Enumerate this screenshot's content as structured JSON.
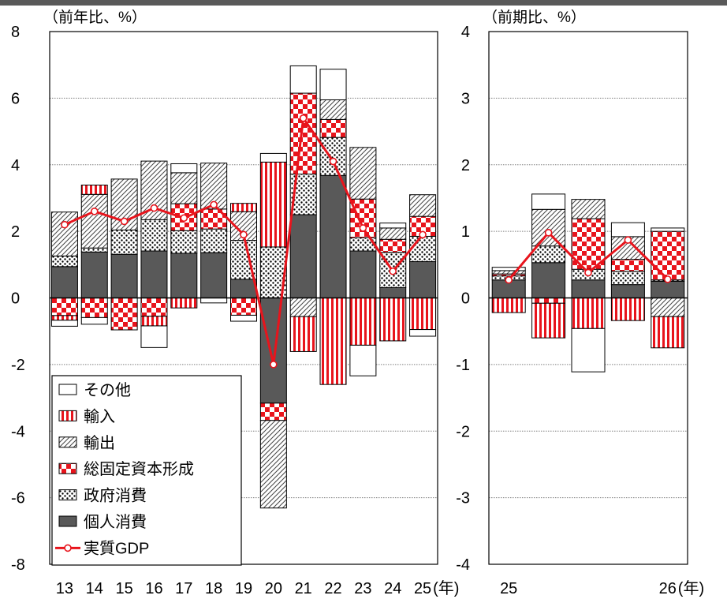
{
  "chart_data": [
    {
      "type": "bar",
      "stacked": true,
      "unit_label": "（前年比、%）",
      "ylim": [
        -8,
        8
      ],
      "y_ticks": [
        8,
        6,
        4,
        2,
        0,
        -2,
        -4,
        -6,
        -8
      ],
      "y_tick_labels": [
        "8",
        "6",
        "4",
        "2",
        "0",
        "-2",
        "-4",
        "-6",
        "-8"
      ],
      "grid": true,
      "legend_position": "bottom-left",
      "categories": [
        "13",
        "14",
        "15",
        "16",
        "17",
        "18",
        "19",
        "20",
        "21",
        "22",
        "23",
        "24",
        "25"
      ],
      "x_suffix": "(年)",
      "series": [
        {
          "name": "個人消費",
          "color": "#595959",
          "values": [
            0.94,
            1.38,
            1.31,
            1.41,
            1.34,
            1.36,
            0.56,
            -3.16,
            2.5,
            3.68,
            1.41,
            0.31,
            1.09
          ]
        },
        {
          "name": "政府消費",
          "color": "#e6e6e6",
          "values": [
            0.32,
            0.12,
            0.73,
            0.94,
            0.68,
            0.71,
            1.17,
            1.53,
            1.22,
            1.14,
            0.4,
            1.06,
            0.76
          ]
        },
        {
          "name": "総固定資本形成",
          "color": "#e8141c",
          "values": [
            -0.53,
            -0.59,
            -0.96,
            -0.55,
            0.81,
            0.6,
            -0.52,
            -0.52,
            2.43,
            0.54,
            1.16,
            0.39,
            0.6
          ]
        },
        {
          "name": "輸出",
          "color": "#bfbfbf",
          "values": [
            1.32,
            1.61,
            1.53,
            1.76,
            0.93,
            1.38,
            0.86,
            -2.63,
            -0.56,
            0.59,
            1.55,
            0.34,
            0.65
          ]
        },
        {
          "name": "輸入",
          "color": "#e8141c",
          "values": [
            -0.14,
            0.28,
            0.0,
            -0.29,
            -0.3,
            0.0,
            0.25,
            2.55,
            -1.05,
            -2.6,
            -1.42,
            -1.29,
            -0.95
          ]
        },
        {
          "name": "その他",
          "color": "#ffffff",
          "values": [
            0.0,
            0.0,
            0.0,
            0.0,
            0.27,
            0.0,
            0.0,
            0.26,
            0.82,
            0.92,
            0.0,
            0.15,
            0.0
          ]
        }
      ],
      "extra_negative_other": [
        -0.18,
        -0.2,
        -0.0,
        -0.65,
        -0.0,
        -0.15,
        -0.18,
        0,
        -0.0,
        0,
        -0.92,
        0,
        -0.2
      ],
      "line_series": {
        "name": "実質GDP",
        "color": "#e8141c",
        "values": [
          2.2,
          2.6,
          2.3,
          2.7,
          2.4,
          2.8,
          1.9,
          -2.0,
          5.4,
          4.1,
          2.1,
          0.8,
          1.9
        ]
      }
    },
    {
      "type": "bar",
      "stacked": true,
      "unit_label": "（前期比、%）",
      "ylim": [
        -4,
        4
      ],
      "y_ticks": [
        4,
        3,
        2,
        1,
        0,
        -1,
        -2,
        -3,
        -4
      ],
      "y_tick_labels": [
        "4",
        "3",
        "2",
        "1",
        "0",
        "-1",
        "-2",
        "-3",
        "-4"
      ],
      "grid": true,
      "categories": [
        "25",
        "",
        "",
        "",
        "26"
      ],
      "x_suffix": "(年)",
      "series": [
        {
          "name": "個人消費",
          "color": "#595959",
          "values": [
            0.27,
            0.53,
            0.27,
            0.2,
            0.25
          ]
        },
        {
          "name": "政府消費",
          "color": "#e6e6e6",
          "values": [
            0.06,
            0.25,
            0.16,
            0.2,
            0.02
          ]
        },
        {
          "name": "総固定資本形成",
          "color": "#e8141c",
          "values": [
            0.03,
            -0.08,
            0.76,
            0.18,
            0.73
          ]
        },
        {
          "name": "輸出",
          "color": "#bfbfbf",
          "values": [
            0.05,
            0.55,
            0.29,
            0.34,
            -0.28
          ]
        },
        {
          "name": "輸入",
          "color": "#e8141c",
          "values": [
            -0.22,
            -0.52,
            -0.46,
            -0.34,
            -0.47
          ]
        },
        {
          "name": "その他",
          "color": "#ffffff",
          "values": [
            0.05,
            0.23,
            0.0,
            0.21,
            0.05
          ]
        }
      ],
      "extra_negative_other": [
        0,
        0,
        -0.65,
        0,
        0
      ],
      "line_series": {
        "name": "実質GDP",
        "color": "#e8141c",
        "values": [
          0.27,
          0.98,
          0.38,
          0.87,
          0.28
        ]
      }
    }
  ],
  "legend": [
    "その他",
    "輸入",
    "輸出",
    "総固定資本形成",
    "政府消費",
    "個人消費",
    "実質GDP"
  ]
}
